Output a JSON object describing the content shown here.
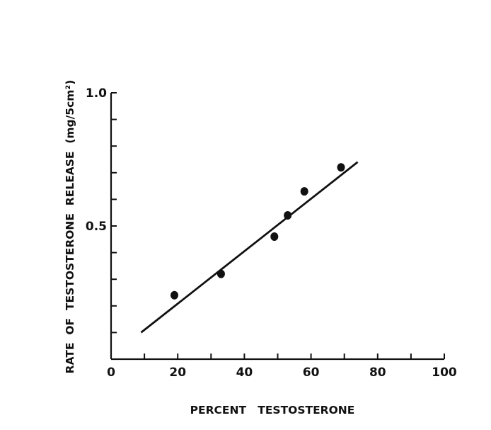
{
  "chart_data": {
    "type": "scatter",
    "title": "",
    "xlabel": "PERCENT   TESTOSTERONE",
    "ylabel": "RATE  OF  TESTOSTERONE  RELEASE  (mg/5cm²)",
    "xlim": [
      0,
      100
    ],
    "ylim": [
      0,
      1.0
    ],
    "x_ticks": [
      0,
      10,
      20,
      30,
      40,
      50,
      60,
      70,
      80,
      90,
      100
    ],
    "x_tick_labels": [
      "0",
      "",
      "20",
      "",
      "40",
      "",
      "60",
      "",
      "80",
      "",
      "100"
    ],
    "y_ticks": [
      0.1,
      0.2,
      0.3,
      0.4,
      0.5,
      0.6,
      0.7,
      0.8,
      0.9,
      1.0
    ],
    "y_tick_labels": [
      "",
      "",
      "",
      "",
      "0.5",
      "",
      "",
      "",
      "",
      "1.0"
    ],
    "grid": false,
    "legend": false,
    "series": [
      {
        "type": "scatter",
        "x": [
          19,
          33,
          49,
          53,
          58,
          69
        ],
        "y": [
          0.24,
          0.32,
          0.46,
          0.54,
          0.63,
          0.72
        ]
      },
      {
        "type": "line",
        "x": [
          9,
          74
        ],
        "y": [
          0.1,
          0.74
        ]
      }
    ]
  }
}
